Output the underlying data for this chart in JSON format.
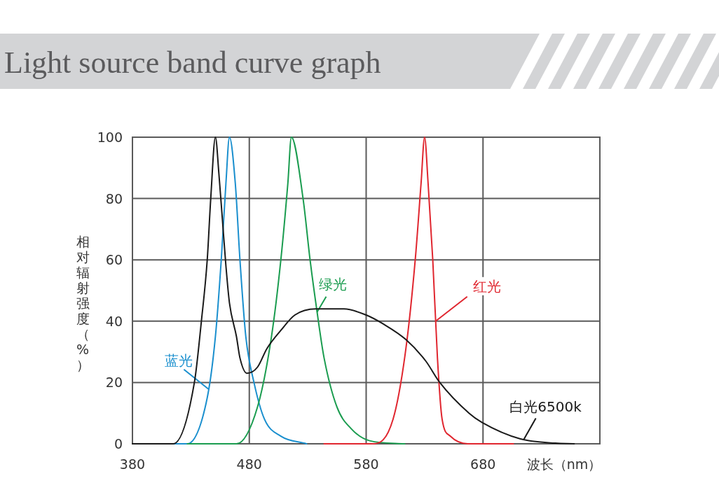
{
  "chart_data": {
    "type": "line",
    "title": "Light source band curve graph",
    "xlabel": "波长（nm）",
    "ylabel": "相对辐射强度（%）",
    "xlim": [
      380,
      780
    ],
    "xticks": [
      380,
      480,
      580,
      680
    ],
    "ylim": [
      0,
      100
    ],
    "yticks": [
      0,
      20,
      40,
      60,
      80,
      100
    ],
    "grid": true,
    "marker": "none",
    "line_style": "solid",
    "series": [
      {
        "name": "蓝光",
        "color": "#1a8fce",
        "x": [
          394,
          427,
          444,
          451,
          456,
          460,
          463,
          468,
          472,
          477,
          484,
          493,
          507,
          529
        ],
        "values": [
          0,
          0,
          15,
          35,
          60,
          85,
          100,
          85,
          60,
          35,
          20,
          8,
          2.5,
          0
        ]
      },
      {
        "name": "绿光",
        "color": "#1a9c4f",
        "x": [
          427,
          469,
          487,
          499,
          507,
          513,
          516,
          526,
          532,
          538,
          544,
          555,
          567,
          583,
          613
        ],
        "values": [
          0,
          0,
          12,
          35,
          60,
          85,
          100,
          80,
          60,
          43,
          28,
          12,
          5,
          1,
          0
        ]
      },
      {
        "name": "红光",
        "color": "#e0262f",
        "x": [
          544,
          586,
          603,
          614,
          622,
          627,
          630,
          633,
          637,
          641,
          645,
          652,
          667,
          706
        ],
        "values": [
          0,
          0,
          8,
          31,
          60,
          85,
          100,
          85,
          60,
          28,
          8,
          2.5,
          0,
          0
        ]
      },
      {
        "name": "白光6500k",
        "color": "#1a1a1a",
        "x": [
          380,
          415,
          433,
          439,
          444,
          447,
          451,
          454,
          457,
          460,
          463,
          469,
          472,
          478,
          487,
          495,
          507,
          519,
          537,
          561,
          580,
          595,
          614,
          631,
          643,
          668,
          679,
          712,
          742,
          758
        ],
        "values": [
          0,
          0,
          20,
          40,
          60,
          80,
          100,
          88,
          73,
          58,
          46,
          35,
          28,
          23,
          25,
          31,
          37,
          42,
          44,
          44,
          42,
          39,
          34,
          27,
          20,
          10,
          7,
          1.6,
          0.2,
          0
        ]
      }
    ]
  }
}
